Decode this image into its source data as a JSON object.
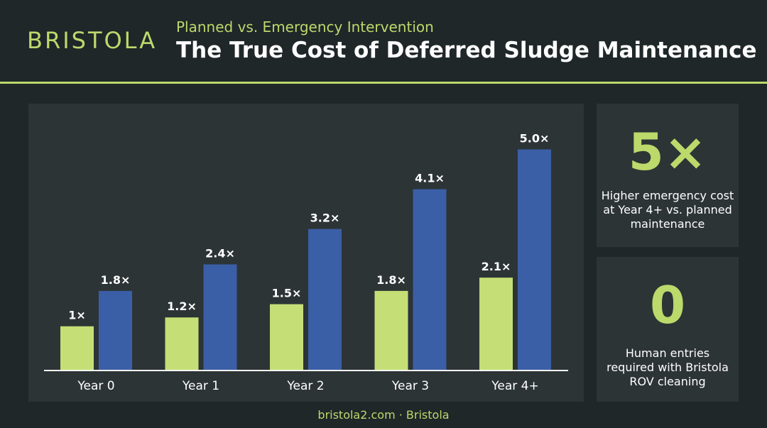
{
  "header": {
    "logo_text": "BRISTOLA",
    "subtitle": "Planned vs. Emergency Intervention",
    "title": "The True Cost of Deferred Sludge Maintenance"
  },
  "chart_data": {
    "type": "bar",
    "categories": [
      "Year 0",
      "Year 1",
      "Year 2",
      "Year 3",
      "Year 4+"
    ],
    "series": [
      {
        "values": [
          1.0,
          1.2,
          1.5,
          1.8,
          2.1
        ],
        "labels": [
          "1×",
          "1.2×",
          "1.5×",
          "1.8×",
          "2.1×"
        ],
        "color": "#c5df76"
      },
      {
        "values": [
          1.8,
          2.4,
          3.2,
          4.1,
          5.0
        ],
        "labels": [
          "1.8×",
          "2.4×",
          "3.2×",
          "4.1×",
          "5.0×"
        ],
        "color": "#3b5fa6"
      }
    ],
    "ylim": [
      0,
      5.6
    ],
    "grid": false,
    "legend": "none"
  },
  "stats": [
    {
      "value": "5×",
      "text": "Higher emergency cost at Year 4+ vs. planned maintenance"
    },
    {
      "value": "0",
      "text": "Human entries required with Bristola ROV cleaning"
    }
  ],
  "footer": "bristola2.com · Bristola",
  "colors": {
    "background": "#1f2729",
    "panel": "#2d3436",
    "accent": "#bcd96b"
  }
}
